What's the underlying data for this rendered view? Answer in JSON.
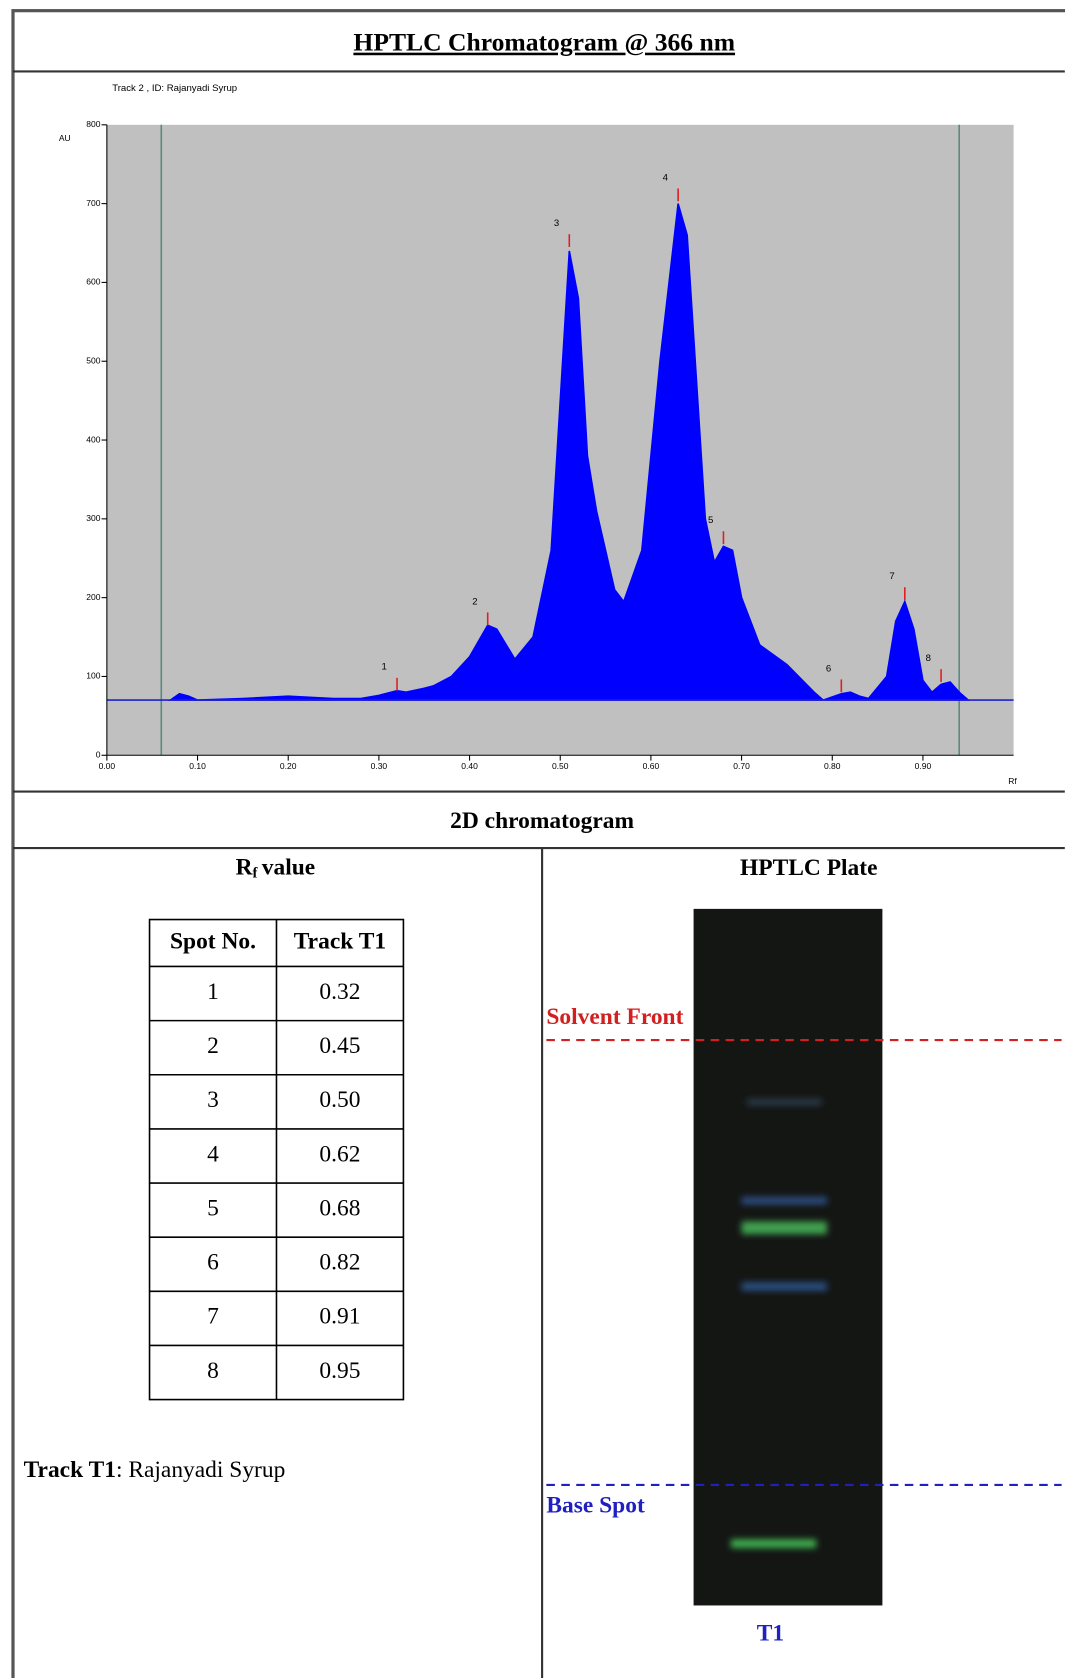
{
  "title": "HPTLC Chromatogram @ 366 nm",
  "chart_data": {
    "type": "area",
    "subtitle": "Track  2 , ID: Rajanyadi Syrup",
    "y_label": "AU",
    "x_label": "Rf",
    "x": [
      0.07,
      0.08,
      0.09,
      0.1,
      0.15,
      0.2,
      0.25,
      0.28,
      0.3,
      0.32,
      0.33,
      0.35,
      0.36,
      0.38,
      0.4,
      0.42,
      0.43,
      0.45,
      0.47,
      0.49,
      0.5,
      0.51,
      0.52,
      0.53,
      0.54,
      0.56,
      0.57,
      0.59,
      0.61,
      0.63,
      0.64,
      0.65,
      0.66,
      0.67,
      0.68,
      0.69,
      0.7,
      0.72,
      0.75,
      0.78,
      0.79,
      0.81,
      0.82,
      0.83,
      0.84,
      0.86,
      0.87,
      0.88,
      0.89,
      0.9,
      0.91,
      0.92,
      0.93,
      0.94,
      0.95
    ],
    "series": [
      {
        "color": "#0000ff",
        "values": [
          70,
          78,
          75,
          70,
          72,
          75,
          72,
          72,
          76,
          82,
          80,
          85,
          88,
          100,
          125,
          165,
          160,
          122,
          150,
          260,
          450,
          640,
          580,
          380,
          310,
          210,
          195,
          260,
          500,
          700,
          660,
          480,
          300,
          245,
          265,
          260,
          200,
          140,
          115,
          80,
          70,
          78,
          80,
          75,
          72,
          100,
          170,
          195,
          160,
          95,
          80,
          90,
          93,
          80,
          70
        ]
      }
    ],
    "baseline": 70,
    "boundaries": [
      0.06,
      0.94
    ],
    "peaks": [
      {
        "label": "1",
        "x": 0.32,
        "y": 82
      },
      {
        "label": "2",
        "x": 0.42,
        "y": 165
      },
      {
        "label": "3",
        "x": 0.51,
        "y": 645
      },
      {
        "label": "4",
        "x": 0.63,
        "y": 703
      },
      {
        "label": "5",
        "x": 0.68,
        "y": 268
      },
      {
        "label": "6",
        "x": 0.81,
        "y": 80
      },
      {
        "label": "7",
        "x": 0.88,
        "y": 197
      },
      {
        "label": "8",
        "x": 0.92,
        "y": 93
      }
    ],
    "xlim": [
      0,
      1.0
    ],
    "ylim": [
      0,
      800
    ],
    "xticks": [
      {
        "value": 0,
        "label": "0.00"
      },
      {
        "value": 0.1,
        "label": "0.10"
      },
      {
        "value": 0.2,
        "label": "0.20"
      },
      {
        "value": 0.3,
        "label": "0.30"
      },
      {
        "value": 0.4,
        "label": "0.40"
      },
      {
        "value": 0.5,
        "label": "0.50"
      },
      {
        "value": 0.6,
        "label": "0.60"
      },
      {
        "value": 0.7,
        "label": "0.70"
      },
      {
        "value": 0.8,
        "label": "0.80"
      },
      {
        "value": 0.9,
        "label": "0.90"
      }
    ],
    "yticks": [
      0,
      100,
      200,
      300,
      400,
      500,
      600,
      700,
      800
    ]
  },
  "section_title": "2D chromatogram",
  "rf_panel": {
    "heading": {
      "symbol": "R",
      "subscript": "f",
      "text": "value"
    },
    "columns": [
      "Spot No.",
      "Track T1"
    ],
    "rows": [
      [
        "1",
        "0.32"
      ],
      [
        "2",
        "0.45"
      ],
      [
        "3",
        "0.50"
      ],
      [
        "4",
        "0.62"
      ],
      [
        "5",
        "0.68"
      ],
      [
        "6",
        "0.82"
      ],
      [
        "7",
        "0.91"
      ],
      [
        "8",
        "0.95"
      ]
    ]
  },
  "note": {
    "label": "Track T1",
    "text": ": Rajanyadi Syrup"
  },
  "plate": {
    "title": "HPTLC Plate",
    "solvent_front": "Solvent Front",
    "base_spot": "Base Spot",
    "track": "T1"
  }
}
